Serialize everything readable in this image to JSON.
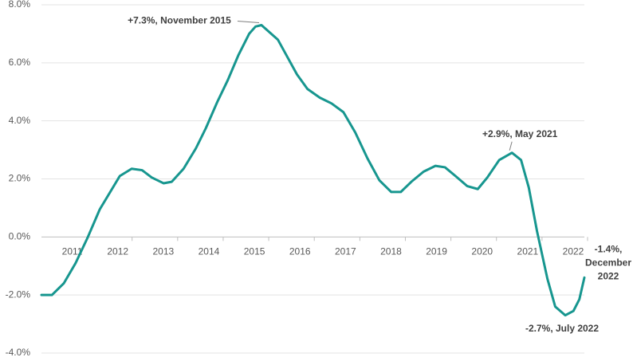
{
  "chart_data": {
    "type": "line",
    "x": [
      2011.0,
      2011.23,
      2011.49,
      2011.75,
      2012.02,
      2012.28,
      2012.51,
      2012.72,
      2012.98,
      2013.21,
      2013.42,
      2013.68,
      2013.86,
      2014.12,
      2014.39,
      2014.61,
      2014.86,
      2015.09,
      2015.32,
      2015.56,
      2015.7,
      2015.83,
      2016.19,
      2016.4,
      2016.61,
      2016.84,
      2017.11,
      2017.37,
      2017.63,
      2017.89,
      2018.16,
      2018.42,
      2018.68,
      2018.89,
      2019.12,
      2019.39,
      2019.65,
      2019.86,
      2020.09,
      2020.35,
      2020.58,
      2020.79,
      2021.05,
      2021.33,
      2021.53,
      2021.7,
      2021.88,
      2022.11,
      2022.28,
      2022.5,
      2022.68,
      2022.81,
      2022.92
    ],
    "series": [
      {
        "color": "#17968f",
        "values": [
          -2.0,
          -2.0,
          -1.6,
          -0.9,
          0.0,
          0.95,
          1.55,
          2.1,
          2.35,
          2.3,
          2.05,
          1.85,
          1.9,
          2.35,
          3.05,
          3.75,
          4.65,
          5.4,
          6.25,
          7.0,
          7.25,
          7.3,
          6.8,
          6.2,
          5.6,
          5.1,
          4.8,
          4.6,
          4.3,
          3.6,
          2.7,
          1.95,
          1.55,
          1.55,
          1.9,
          2.25,
          2.45,
          2.4,
          2.1,
          1.75,
          1.65,
          2.05,
          2.65,
          2.9,
          2.65,
          1.7,
          0.2,
          -1.45,
          -2.4,
          -2.7,
          -2.55,
          -2.15,
          -1.4
        ]
      }
    ],
    "xlim": [
      2011.0,
      2022.92
    ],
    "xticks": [
      {
        "value": 2011.5,
        "label": "2011"
      },
      {
        "value": 2012.5,
        "label": "2012"
      },
      {
        "value": 2013.5,
        "label": "2013"
      },
      {
        "value": 2014.5,
        "label": "2014"
      },
      {
        "value": 2015.5,
        "label": "2015"
      },
      {
        "value": 2016.5,
        "label": "2016"
      },
      {
        "value": 2017.5,
        "label": "2017"
      },
      {
        "value": 2018.5,
        "label": "2018"
      },
      {
        "value": 2019.5,
        "label": "2019"
      },
      {
        "value": 2020.5,
        "label": "2020"
      },
      {
        "value": 2021.5,
        "label": "2021"
      },
      {
        "value": 2022.5,
        "label": "2022"
      }
    ],
    "ylim": [
      -4,
      8
    ],
    "yticks": [
      {
        "value": -4,
        "label": "-4.0%"
      },
      {
        "value": -2,
        "label": "-2.0%"
      },
      {
        "value": 0,
        "label": "0.0%"
      },
      {
        "value": 2,
        "label": "2.0%"
      },
      {
        "value": 4,
        "label": "4.0%"
      },
      {
        "value": 6,
        "label": "6.0%"
      },
      {
        "value": 8,
        "label": "8.0%"
      }
    ],
    "grid": true,
    "annotations": [
      {
        "lines": [
          "+7.3%, November 2015"
        ],
        "x": 2015.83,
        "y": 7.3
      },
      {
        "lines": [
          "+2.9%, May 2021"
        ],
        "x": 2021.33,
        "y": 2.9
      },
      {
        "lines": [
          "-2.7%, July 2022"
        ],
        "x": 2022.5,
        "y": -2.7
      },
      {
        "lines": [
          "-1.4%,",
          "December",
          "2022"
        ],
        "x": 2022.92,
        "y": -1.4
      }
    ]
  }
}
